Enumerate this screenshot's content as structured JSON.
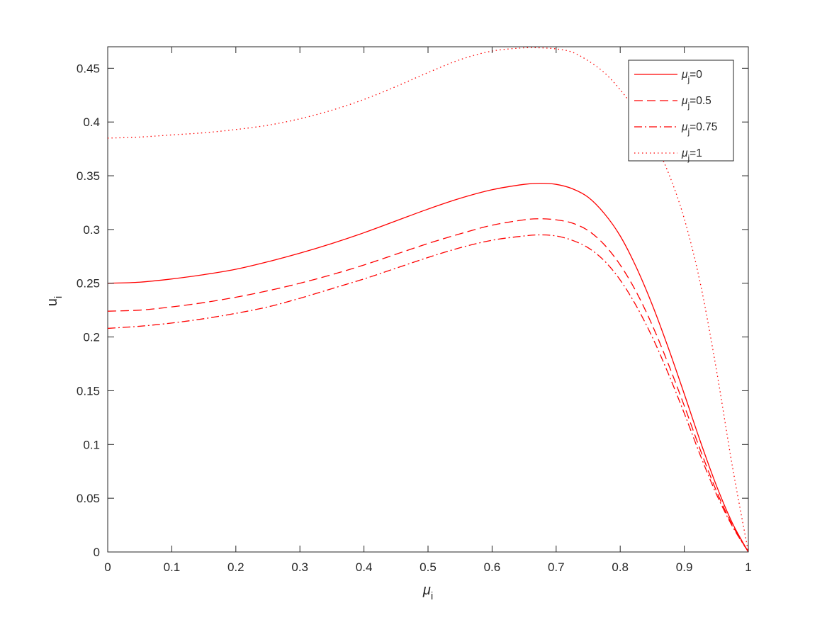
{
  "chart_data": {
    "type": "line",
    "title": "",
    "xlabel": {
      "base": "μ",
      "sub": "i"
    },
    "ylabel": {
      "base": "u",
      "sub": "i"
    },
    "xlim": [
      0,
      1
    ],
    "ylim": [
      0,
      0.47
    ],
    "xticks": [
      0,
      0.1,
      0.2,
      0.3,
      0.4,
      0.5,
      0.6,
      0.7,
      0.8,
      0.9,
      1
    ],
    "xtick_labels": [
      "0",
      "0.1",
      "0.2",
      "0.3",
      "0.4",
      "0.5",
      "0.6",
      "0.7",
      "0.8",
      "0.9",
      "1"
    ],
    "yticks": [
      0,
      0.05,
      0.1,
      0.15,
      0.2,
      0.25,
      0.3,
      0.35,
      0.4,
      0.45
    ],
    "ytick_labels": [
      "0",
      "0.05",
      "0.1",
      "0.15",
      "0.2",
      "0.25",
      "0.3",
      "0.35",
      "0.4",
      "0.45"
    ],
    "grid": false,
    "legend_position": "top-right",
    "line_color": "#ff0000",
    "x": [
      0,
      0.05,
      0.1,
      0.15,
      0.2,
      0.25,
      0.3,
      0.35,
      0.4,
      0.45,
      0.5,
      0.55,
      0.6,
      0.65,
      0.675,
      0.7,
      0.725,
      0.75,
      0.775,
      0.8,
      0.825,
      0.85,
      0.875,
      0.9,
      0.925,
      0.95,
      0.975,
      1
    ],
    "series": [
      {
        "legend_base": "μ",
        "legend_sub": "j",
        "legend_value": "=0",
        "style": "solid",
        "values": [
          0.25,
          0.251,
          0.254,
          0.258,
          0.263,
          0.27,
          0.278,
          0.287,
          0.297,
          0.308,
          0.319,
          0.329,
          0.337,
          0.342,
          0.343,
          0.342,
          0.338,
          0.33,
          0.315,
          0.294,
          0.265,
          0.23,
          0.19,
          0.147,
          0.103,
          0.062,
          0.027,
          0.0
        ]
      },
      {
        "legend_base": "μ",
        "legend_sub": "j",
        "legend_value": "=0.5",
        "style": "dashed",
        "values": [
          0.224,
          0.225,
          0.228,
          0.232,
          0.237,
          0.243,
          0.25,
          0.258,
          0.267,
          0.277,
          0.287,
          0.296,
          0.304,
          0.309,
          0.31,
          0.309,
          0.306,
          0.299,
          0.286,
          0.267,
          0.242,
          0.211,
          0.175,
          0.136,
          0.095,
          0.057,
          0.025,
          0.0
        ]
      },
      {
        "legend_base": "μ",
        "legend_sub": "j",
        "legend_value": "=0.75",
        "style": "dashdot",
        "values": [
          0.208,
          0.21,
          0.213,
          0.217,
          0.222,
          0.228,
          0.236,
          0.245,
          0.254,
          0.264,
          0.274,
          0.283,
          0.29,
          0.294,
          0.295,
          0.294,
          0.29,
          0.283,
          0.271,
          0.253,
          0.229,
          0.2,
          0.166,
          0.129,
          0.09,
          0.054,
          0.024,
          0.0
        ]
      },
      {
        "legend_base": "μ",
        "legend_sub": "j",
        "legend_value": "=1",
        "style": "dotted",
        "values": [
          0.385,
          0.386,
          0.388,
          0.39,
          0.393,
          0.397,
          0.403,
          0.411,
          0.421,
          0.433,
          0.446,
          0.458,
          0.466,
          0.469,
          0.469,
          0.468,
          0.465,
          0.457,
          0.446,
          0.43,
          0.41,
          0.385,
          0.353,
          0.31,
          0.25,
          0.17,
          0.08,
          0.0
        ]
      }
    ]
  }
}
